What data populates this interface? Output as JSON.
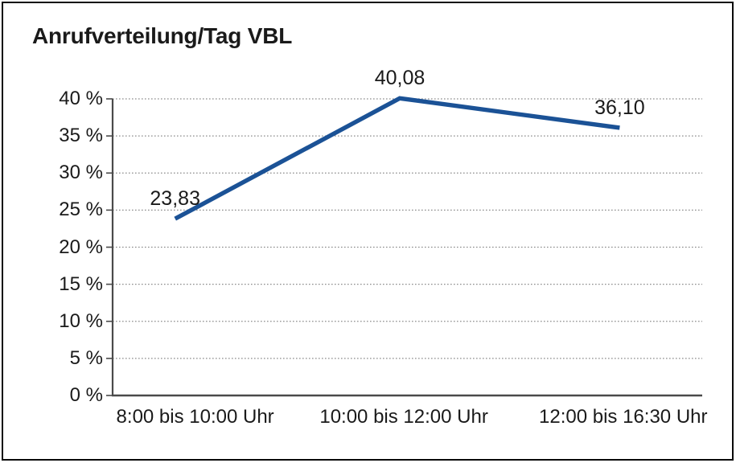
{
  "window": {
    "background_color": "#ffffff",
    "border_color": "#0a0a0a"
  },
  "chart_data": {
    "type": "line",
    "title": "Anrufverteilung/Tag VBL",
    "categories": [
      "8:00 bis 10:00 Uhr",
      "10:00 bis 12:00 Uhr",
      "12:00 bis 16:30 Uhr"
    ],
    "series": [
      {
        "name": "Anrufverteilung/Tag VBL",
        "values": [
          23.83,
          40.08,
          36.1
        ]
      }
    ],
    "point_labels": [
      "23,83",
      "40,08",
      "36,10"
    ],
    "xlabel": "",
    "ylabel": "",
    "ylim": [
      0,
      40
    ],
    "ytick_step": 5,
    "ytick_labels": [
      "0 %",
      "5 %",
      "10 %",
      "15 %",
      "20 %",
      "25 %",
      "30 %",
      "35 %",
      "40 %"
    ],
    "grid": "horizontal-dotted",
    "legend": "none",
    "line_color": "#1b5296",
    "grid_color": "#8c8c8c",
    "axis_color": "#4a4a4a",
    "text_color": "#1a1a1a"
  }
}
